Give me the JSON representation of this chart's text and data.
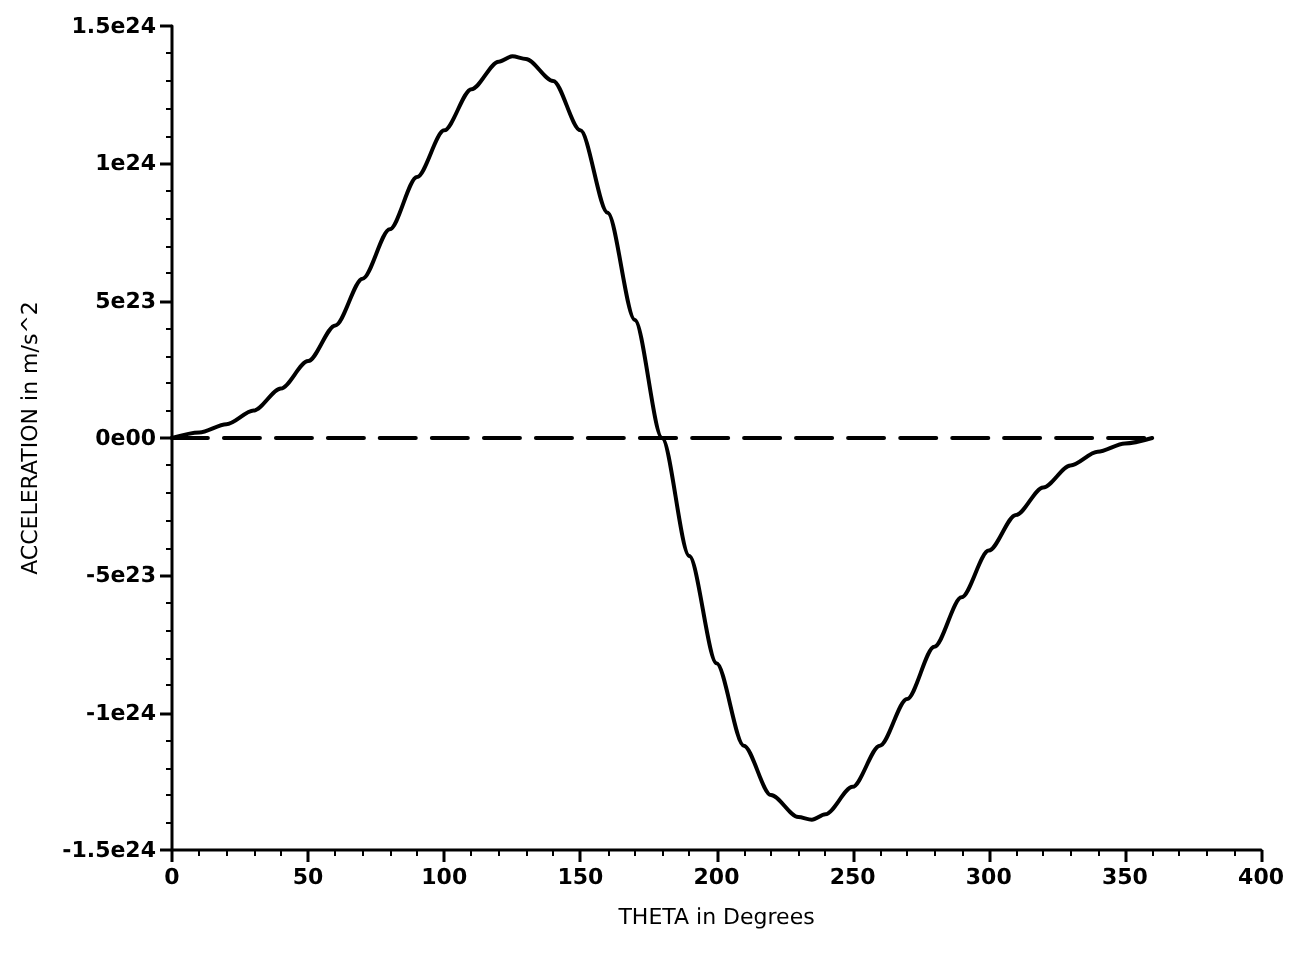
{
  "chart_data": {
    "type": "line",
    "xlabel": "THETA in Degrees",
    "ylabel": "ACCELERATION in m/s^2",
    "xlim": [
      0,
      400
    ],
    "xticks": [
      0,
      50,
      100,
      150,
      200,
      250,
      300,
      350,
      400
    ],
    "ylim": [
      -1.5e+24,
      1.5e+24
    ],
    "yticks": [
      {
        "value": -1.5e+24,
        "label": "-1.5e24"
      },
      {
        "value": -1e+24,
        "label": "-1e24"
      },
      {
        "value": -5e+23,
        "label": "-5e23"
      },
      {
        "value": 0,
        "label": "0e00"
      },
      {
        "value": 5e+23,
        "label": "5e23"
      },
      {
        "value": 1e+24,
        "label": "1e24"
      },
      {
        "value": 1.5e+24,
        "label": "1.5e24"
      }
    ],
    "grid": false,
    "marker": "none",
    "series": [
      {
        "color": "#000000",
        "line_style": "solid",
        "x": [
          0,
          10,
          20,
          30,
          40,
          50,
          60,
          70,
          80,
          90,
          100,
          110,
          120,
          125,
          130,
          140,
          150,
          160,
          170,
          180,
          190,
          200,
          210,
          220,
          230,
          235,
          240,
          250,
          260,
          270,
          280,
          290,
          300,
          310,
          320,
          330,
          340,
          350,
          360
        ],
        "values": [
          0,
          2e+22,
          5e+22,
          1e+23,
          1.8e+23,
          2.8e+23,
          4.1e+23,
          5.8e+23,
          7.6e+23,
          9.5e+23,
          1.12e+24,
          1.27e+24,
          1.37e+24,
          1.39e+24,
          1.38e+24,
          1.3e+24,
          1.12e+24,
          8.2e+23,
          4.3e+23,
          0,
          -4.3e+23,
          -8.2e+23,
          -1.12e+24,
          -1.3e+24,
          -1.38e+24,
          -1.39e+24,
          -1.37e+24,
          -1.27e+24,
          -1.12e+24,
          -9.5e+23,
          -7.6e+23,
          -5.8e+23,
          -4.1e+23,
          -2.8e+23,
          -1.8e+23,
          -1e+23,
          -5e+22,
          -2e+22,
          0
        ]
      },
      {
        "color": "#000000",
        "line_style": "dashed",
        "x": [
          0,
          360
        ],
        "values": [
          0,
          0
        ]
      }
    ]
  }
}
